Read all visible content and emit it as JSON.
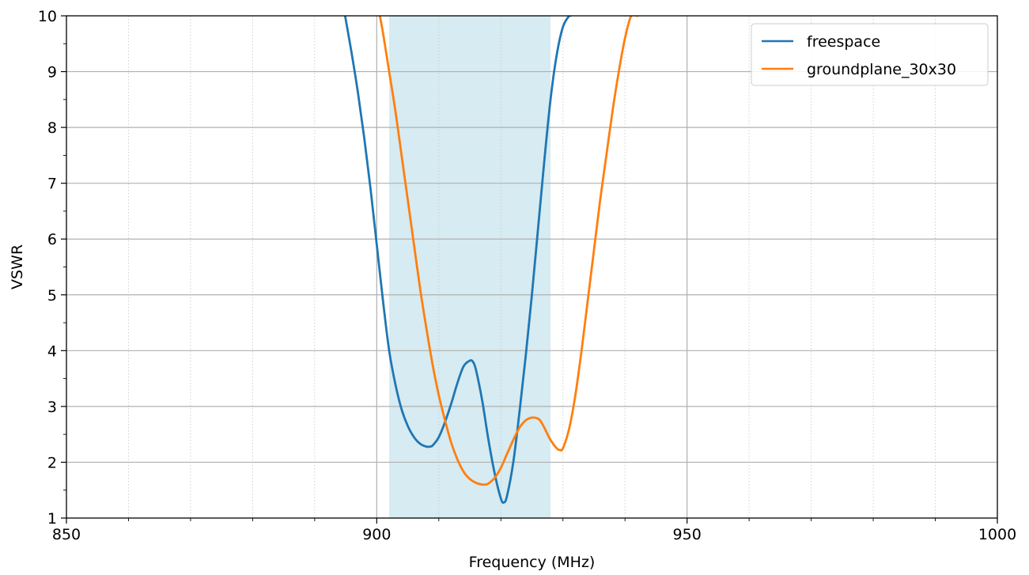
{
  "chart_data": {
    "type": "line",
    "title": "",
    "xlabel": "Frequency (MHz)",
    "ylabel": "VSWR",
    "xlim": [
      850,
      1000
    ],
    "ylim": [
      1,
      10
    ],
    "x_ticks": [
      850,
      900,
      950,
      1000
    ],
    "x_tick_labels": [
      "850",
      "900",
      "950",
      "1000"
    ],
    "y_ticks": [
      1,
      2,
      3,
      4,
      5,
      6,
      7,
      8,
      9,
      10
    ],
    "y_tick_labels": [
      "1",
      "2",
      "3",
      "4",
      "5",
      "6",
      "7",
      "8",
      "9",
      "10"
    ],
    "x_minor_step": 10,
    "y_minor_step": 0.5,
    "grid": true,
    "legend_position": "top-right",
    "shaded_band": {
      "x_start": 902,
      "x_end": 928,
      "color": "#add8e6"
    },
    "series": [
      {
        "name": "freespace",
        "color": "#1f77b4",
        "x": [
          894.9,
          896.0,
          897.0,
          898.0,
          899.0,
          900.0,
          901.0,
          902.0,
          903.0,
          904.0,
          905.0,
          906.0,
          907.0,
          908.0,
          908.5,
          909.0,
          910.0,
          911.0,
          912.0,
          913.0,
          914.0,
          915.0,
          915.5,
          916.0,
          917.0,
          918.0,
          919.0,
          920.0,
          920.5,
          921.0,
          922.0,
          923.0,
          924.0,
          925.0,
          926.0,
          927.0,
          928.0,
          929.0,
          930.0,
          931.0,
          931.2
        ],
        "y": [
          10.0,
          9.3,
          8.6,
          7.8,
          6.9,
          5.9,
          4.9,
          4.0,
          3.4,
          2.95,
          2.65,
          2.45,
          2.33,
          2.28,
          2.28,
          2.3,
          2.45,
          2.72,
          3.05,
          3.42,
          3.72,
          3.82,
          3.8,
          3.65,
          3.1,
          2.4,
          1.8,
          1.35,
          1.28,
          1.4,
          2.0,
          2.9,
          3.9,
          5.0,
          6.2,
          7.4,
          8.5,
          9.3,
          9.8,
          10.0,
          10.0
        ]
      },
      {
        "name": "groundplane_30x30",
        "color": "#ff7f0e",
        "x": [
          900.5,
          901.0,
          902.0,
          903.0,
          904.0,
          905.0,
          906.0,
          907.0,
          908.0,
          909.0,
          910.0,
          911.0,
          912.0,
          913.0,
          914.0,
          915.0,
          916.0,
          917.0,
          917.5,
          918.0,
          919.0,
          920.0,
          921.0,
          922.0,
          923.0,
          924.0,
          925.0,
          926.0,
          926.5,
          927.0,
          928.0,
          929.0,
          929.5,
          930.0,
          931.0,
          932.0,
          933.0,
          934.0,
          935.0,
          936.0,
          937.0,
          938.0,
          939.0,
          940.0,
          941.0,
          942.0
        ],
        "y": [
          10.0,
          9.7,
          9.0,
          8.3,
          7.5,
          6.7,
          5.9,
          5.1,
          4.4,
          3.75,
          3.2,
          2.75,
          2.35,
          2.05,
          1.83,
          1.7,
          1.63,
          1.6,
          1.6,
          1.62,
          1.72,
          1.9,
          2.15,
          2.4,
          2.62,
          2.75,
          2.8,
          2.78,
          2.72,
          2.62,
          2.4,
          2.25,
          2.22,
          2.25,
          2.6,
          3.2,
          4.0,
          4.9,
          5.8,
          6.7,
          7.5,
          8.3,
          9.0,
          9.6,
          10.0,
          10.0
        ]
      }
    ]
  }
}
